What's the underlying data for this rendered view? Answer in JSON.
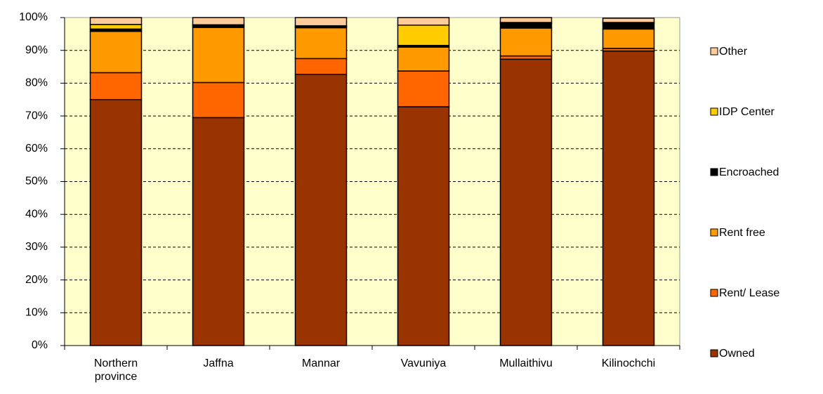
{
  "chart_data": {
    "type": "stacked_bar_percent",
    "categories": [
      "Northern province",
      "Jaffna",
      "Mannar",
      "Vavuniya",
      "Mullaithivu",
      "Kilinochchi"
    ],
    "series": [
      {
        "name": "Owned",
        "color": "#993300",
        "values": [
          75,
          69.5,
          82.7,
          72.8,
          87.3,
          89.8
        ]
      },
      {
        "name": "Rent/ Lease",
        "color": "#ff6600",
        "values": [
          8.2,
          10.7,
          4.8,
          10.9,
          1,
          0.8
        ]
      },
      {
        "name": "Rent free",
        "color": "#ff9900",
        "values": [
          12.6,
          16.8,
          9.4,
          7.3,
          8.5,
          5.9
        ]
      },
      {
        "name": "Encroached",
        "color": "#000000",
        "values": [
          0.7,
          0.5,
          0.3,
          0.5,
          1.4,
          1.8
        ]
      },
      {
        "name": "IDP Center",
        "color": "#ffcc00",
        "values": [
          1.4,
          0.3,
          0.3,
          6.2,
          0.3,
          0.2
        ]
      },
      {
        "name": "Other",
        "color": "#ffcc99",
        "values": [
          2.1,
          2.2,
          2.5,
          2.3,
          1.5,
          1.3
        ]
      }
    ],
    "ylim": [
      0,
      100
    ],
    "yticks": [
      {
        "value": 0,
        "label": "0%"
      },
      {
        "value": 10,
        "label": "10%"
      },
      {
        "value": 20,
        "label": "20%"
      },
      {
        "value": 30,
        "label": "30%"
      },
      {
        "value": 40,
        "label": "40%"
      },
      {
        "value": 50,
        "label": "50%"
      },
      {
        "value": 60,
        "label": "60%"
      },
      {
        "value": 70,
        "label": "70%"
      },
      {
        "value": 80,
        "label": "80%"
      },
      {
        "value": 90,
        "label": "90%"
      },
      {
        "value": 100,
        "label": "100%"
      }
    ],
    "grid": true,
    "legend": "right",
    "plot_background": "#ffffcc"
  }
}
